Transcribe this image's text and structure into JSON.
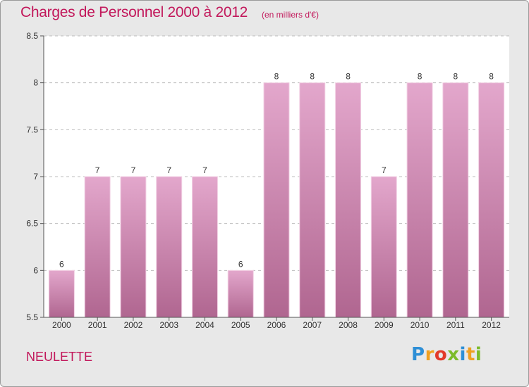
{
  "header": {
    "title": "Charges de Personnel 2000 à 2012",
    "subtitle": "(en milliers d'€)"
  },
  "footer": {
    "commune": "NEULETTE",
    "brand_letters": [
      {
        "char": "P",
        "color": "#2e8fd6"
      },
      {
        "char": "r",
        "color": "#f0a020"
      },
      {
        "char": "o",
        "color": "#e23a2a"
      },
      {
        "char": "x",
        "color": "#7cbb2a"
      },
      {
        "char": "i",
        "color": "#2e8fd6"
      },
      {
        "char": "t",
        "color": "#f0a020"
      },
      {
        "char": "i",
        "color": "#7cbb2a"
      }
    ]
  },
  "colors": {
    "title": "#c2185b",
    "bar_top": "#e3a7cc",
    "bar_bottom": "#b06690",
    "axis": "#555555",
    "grid": "#bdbdbd",
    "plot_bg": "#ffffff",
    "page_bg": "#e8e8e8"
  },
  "chart_data": {
    "type": "bar",
    "title": "Charges de Personnel 2000 à 2012",
    "subtitle": "(en milliers d'€)",
    "categories": [
      "2000",
      "2001",
      "2002",
      "2003",
      "2004",
      "2005",
      "2006",
      "2007",
      "2008",
      "2009",
      "2010",
      "2011",
      "2012"
    ],
    "values": [
      6,
      7,
      7,
      7,
      7,
      6,
      8,
      8,
      8,
      7,
      8,
      8,
      8
    ],
    "data_labels": [
      "6",
      "7",
      "7",
      "7",
      "7",
      "6",
      "8",
      "8",
      "8",
      "7",
      "8",
      "8",
      "8"
    ],
    "ylim": [
      5.5,
      8.5
    ],
    "yticks": [
      5.5,
      6,
      6.5,
      7,
      7.5,
      8,
      8.5
    ],
    "ytick_labels": [
      "5.5",
      "6",
      "6.5",
      "7",
      "7.5",
      "8",
      "8.5"
    ],
    "xlabel": "",
    "ylabel": "",
    "grid": true
  }
}
